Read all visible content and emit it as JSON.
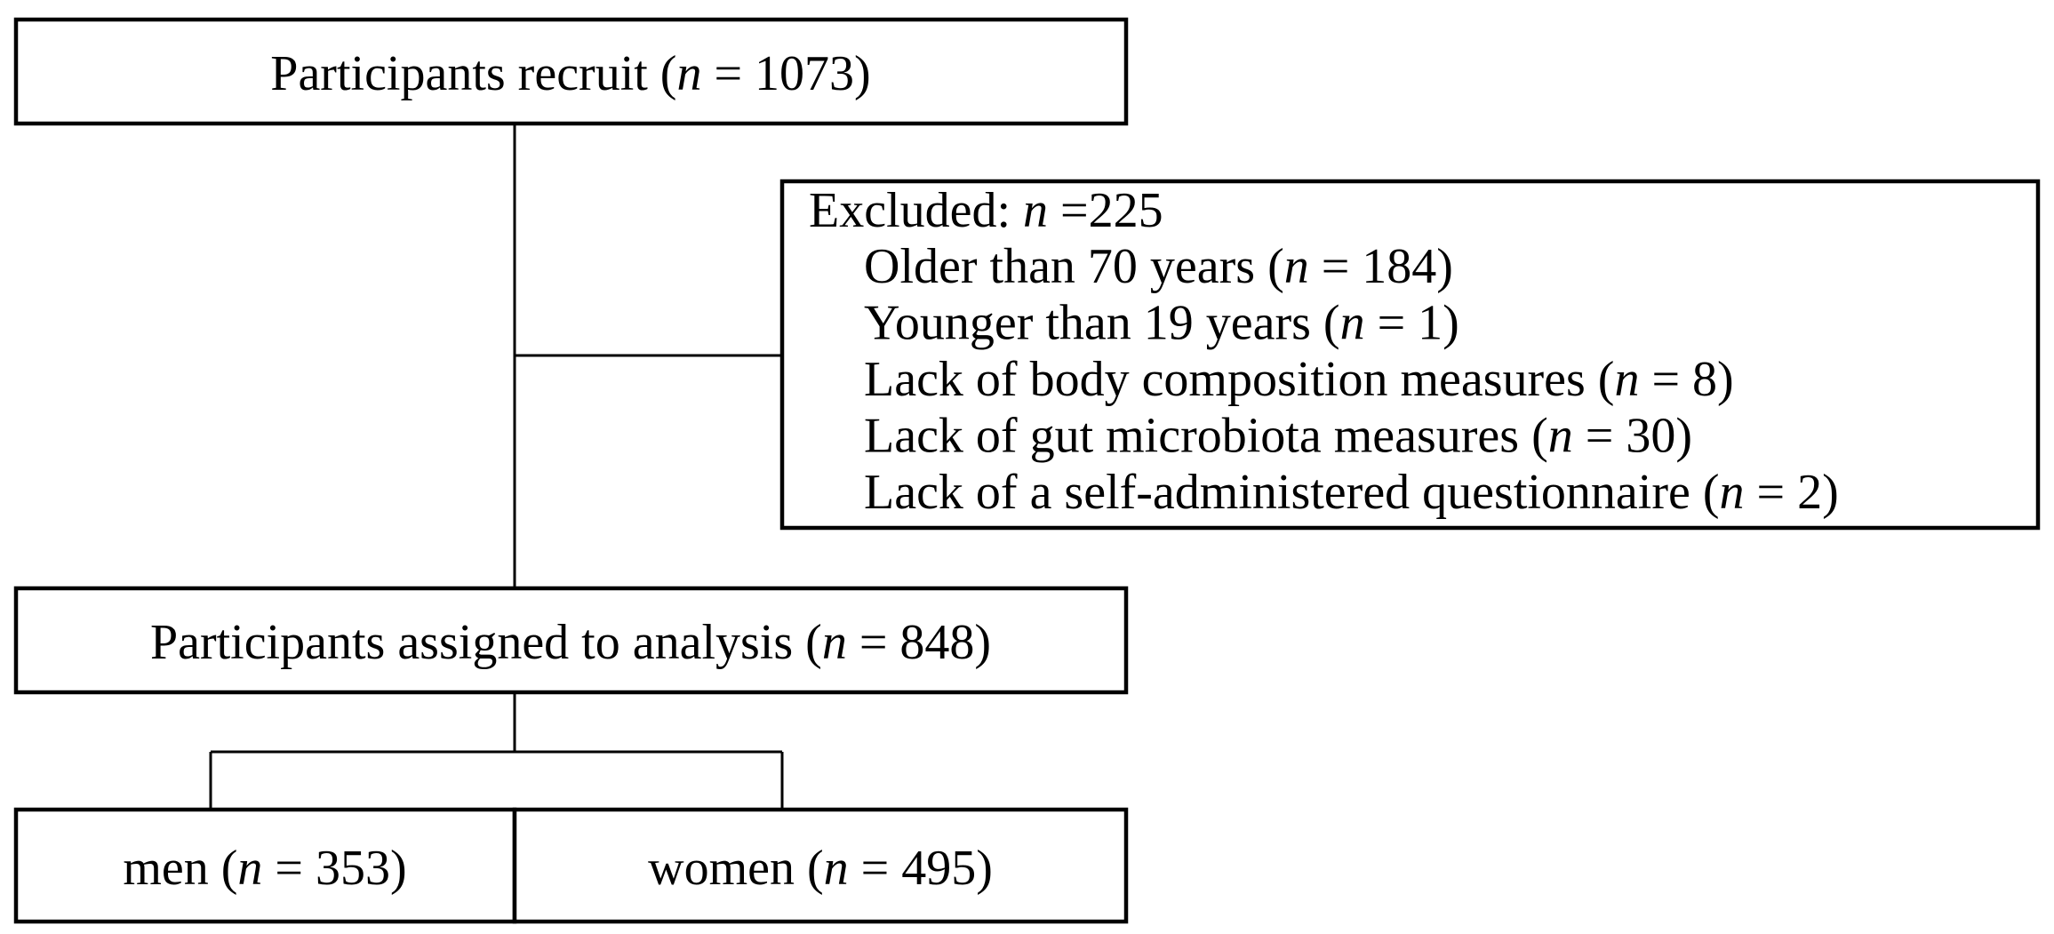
{
  "nodes": [
    {
      "before": "Participants recruit (",
      "variable": "n",
      "after": " = 1073)"
    },
    {
      "before": "Participants assigned to analysis (",
      "variable": "n",
      "after": " = 848)"
    },
    {
      "before": "men (",
      "variable": "n",
      "after": " = 353)"
    },
    {
      "before": "women (",
      "variable": "n",
      "after": " = 495)"
    }
  ],
  "excluded": {
    "heading": {
      "before": "Excluded: ",
      "variable": "n",
      "after": " =225"
    },
    "items": [
      {
        "before": "Older than 70 years (",
        "variable": "n",
        "after": " = 184)"
      },
      {
        "before": "Younger than 19 years (",
        "variable": "n",
        "after": " = 1)"
      },
      {
        "before": "Lack of body composition measures (",
        "variable": "n",
        "after": " = 8)"
      },
      {
        "before": "Lack of gut microbiota measures (",
        "variable": "n",
        "after": " = 30)"
      },
      {
        "before": "Lack of a self-administered questionnaire (",
        "variable": "n",
        "after": " = 2)"
      }
    ]
  }
}
